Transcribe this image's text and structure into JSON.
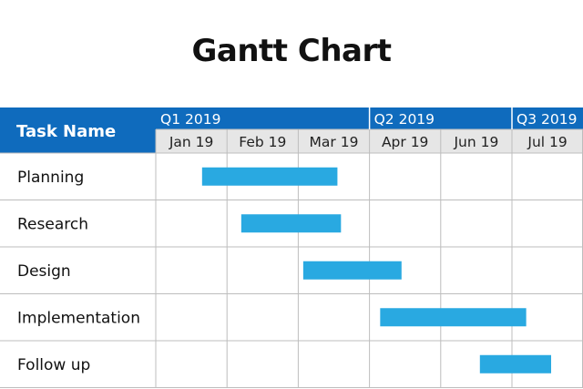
{
  "title": "Gantt Chart",
  "colors": {
    "header_bg": "#0f6bbd",
    "month_row_bg": "#e6e6e6",
    "bar": "#29a9e1",
    "grid": "#bdbdbd"
  },
  "chart_data": {
    "type": "gantt",
    "title": "Gantt Chart",
    "task_column_header": "Task Name",
    "quarters": [
      {
        "label": "Q1 2019",
        "start_month": 0
      },
      {
        "label": "Q2 2019",
        "start_month": 3
      },
      {
        "label": "Q3 2019",
        "start_month": 5
      }
    ],
    "months": [
      "Jan 19",
      "Feb 19",
      "Mar 19",
      "Apr 19",
      "Jun 19",
      "Jul 19"
    ],
    "tasks": [
      {
        "name": "Planning",
        "start": 0.65,
        "end": 2.55
      },
      {
        "name": "Research",
        "start": 1.2,
        "end": 2.6
      },
      {
        "name": "Design",
        "start": 2.07,
        "end": 3.45
      },
      {
        "name": "Implementation",
        "start": 3.15,
        "end": 5.2
      },
      {
        "name": "Follow up",
        "start": 4.55,
        "end": 5.55
      }
    ]
  }
}
